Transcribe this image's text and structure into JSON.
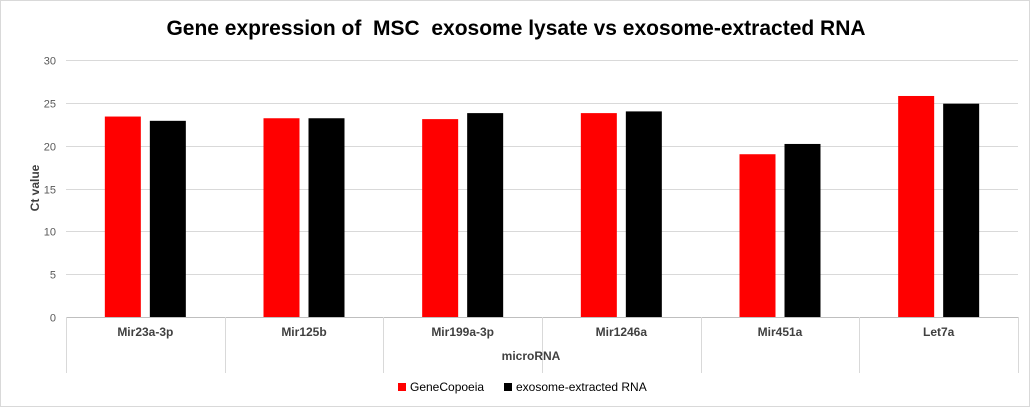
{
  "chart_data": {
    "type": "bar",
    "title": "Gene expression of  MSC  exosome lysate vs exosome-extracted RNA",
    "xlabel": "microRNA",
    "ylabel": "Ct value",
    "categories": [
      "Mir23a-3p",
      "Mir125b",
      "Mir199a-3p",
      "Mir1246a",
      "Mir451a",
      "Let7a"
    ],
    "series": [
      {
        "name": "GeneCopoeia",
        "color": "#ff0000",
        "values": [
          23.4,
          23.2,
          23.1,
          23.8,
          19.0,
          25.8
        ]
      },
      {
        "name": "exosome-extracted RNA",
        "color": "#000000",
        "values": [
          22.9,
          23.2,
          23.8,
          24.0,
          20.2,
          24.9
        ]
      }
    ],
    "ylim": [
      0,
      30
    ],
    "yticks": [
      0,
      5,
      10,
      15,
      20,
      25,
      30
    ],
    "grid": true,
    "legend_position": "bottom"
  }
}
